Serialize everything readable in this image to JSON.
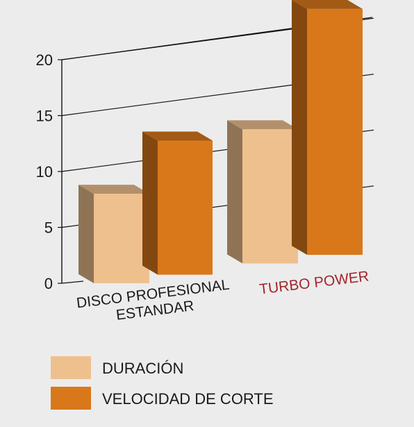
{
  "chart_data": {
    "type": "bar",
    "title": "",
    "xlabel": "",
    "ylabel": "",
    "ylim": [
      0,
      20
    ],
    "yticks": [
      0,
      5,
      10,
      15,
      20
    ],
    "grid": true,
    "legend_position": "bottom",
    "categories": [
      {
        "lines": [
          "DISCO PROFESIONAL",
          "ESTANDAR"
        ],
        "color": "#1a1a1a"
      },
      {
        "lines": [
          "TURBO POWER"
        ],
        "color": "#a3262c"
      }
    ],
    "series": [
      {
        "name": "DURACIÓN",
        "color": "#eec08e",
        "values": [
          8,
          12
        ]
      },
      {
        "name": "VELOCIDAD DE CORTE",
        "color": "#d9781b",
        "values": [
          12,
          22
        ]
      }
    ]
  }
}
